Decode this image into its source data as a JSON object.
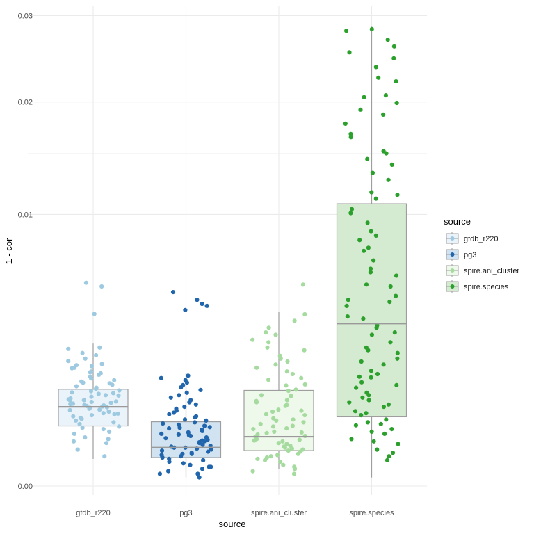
{
  "chart_data": {
    "type": "boxplot",
    "xlabel": "source",
    "ylabel": "1 - cor",
    "categories": [
      "gtdb_r220",
      "pg3",
      "spire.ani_cluster",
      "spire.species"
    ],
    "y_scale": "sqrt",
    "ylim": [
      0,
      0.0305
    ],
    "y_ticks": [
      0.0,
      0.01,
      0.02,
      0.03
    ],
    "y_tick_labels": [
      "0.00",
      "0.01",
      "0.02",
      "0.03"
    ],
    "grid": true,
    "legend": {
      "title": "source",
      "position": "right",
      "entries": [
        "gtdb_r220",
        "pg3",
        "spire.ani_cluster",
        "spire.species"
      ]
    },
    "series": [
      {
        "name": "gtdb_r220",
        "color": "#9ecae1",
        "box_fill": "#eaf3f9",
        "box": {
          "whisker_low": 0.0001,
          "q1": 0.00049,
          "median": 0.00085,
          "q3": 0.00127,
          "whisker_high": 0.00275
        },
        "points": [
          0.00012,
          0.00018,
          0.00025,
          0.00032,
          0.0004,
          0.00046,
          0.00052,
          0.00058,
          0.00063,
          0.00068,
          0.00072,
          0.00075,
          0.00078,
          0.00081,
          0.00084,
          0.00086,
          0.00088,
          0.00091,
          0.00094,
          0.00097,
          0.001,
          0.00104,
          0.00108,
          0.00112,
          0.00117,
          0.00122,
          0.00128,
          0.00135,
          0.00143,
          0.00152,
          0.00162,
          0.00175,
          0.00188,
          0.00202,
          0.0022,
          0.0024,
          0.0026,
          0.00402,
          0.0054,
          0.0056,
          0.00027,
          0.00055,
          0.00066,
          0.00079,
          0.00089,
          0.00099,
          0.00111,
          0.00124,
          0.00139,
          0.00157,
          0.00178,
          0.00198,
          0.00037,
          0.00048,
          0.00061,
          0.00071,
          0.00083,
          0.00092,
          0.00102,
          0.00115,
          0.00131,
          0.00148,
          0.00168,
          0.0019,
          0.00212,
          0.00232,
          0.00255,
          0.0003,
          0.00044,
          0.0007,
          0.00087,
          0.00096,
          0.00119,
          0.00145,
          0.00172,
          0.00195
        ]
      },
      {
        "name": "pg3",
        "color": "#2166ac",
        "box_fill": "#d1e3f1",
        "box": {
          "whisker_low": 1e-05,
          "q1": 0.00011,
          "median": 0.0002,
          "q3": 0.00056,
          "whisker_high": 0.00173
        },
        "points": [
          1e-05,
          2e-05,
          3e-05,
          5e-05,
          7e-05,
          9e-05,
          0.00011,
          0.00013,
          0.00015,
          0.00017,
          0.00019,
          0.00021,
          0.00023,
          0.00026,
          0.00029,
          0.00032,
          0.00035,
          0.00039,
          0.00043,
          0.00047,
          0.00051,
          0.00055,
          0.0006,
          0.00066,
          0.00073,
          0.00081,
          0.0009,
          0.001,
          0.00112,
          0.00125,
          0.00138,
          0.00152,
          0.00165,
          0.0042,
          0.0044,
          0.0045,
          0.0047,
          0.0051,
          4e-05,
          6e-05,
          8e-05,
          0.0001,
          0.00012,
          0.00014,
          0.00016,
          0.00018,
          0.0002,
          0.00022,
          0.00025,
          0.00028,
          0.00031,
          0.00034,
          0.00037,
          0.00041,
          0.00045,
          0.00049,
          0.00053,
          0.00058,
          0.00064,
          0.0007,
          0.00077,
          0.00085,
          0.00095,
          0.00106,
          0.00118,
          0.00132,
          0.00145,
          0.00158,
          2e-05,
          5e-05,
          9e-05,
          0.00014,
          0.0002,
          0.00027,
          0.00036,
          0.00046
        ]
      },
      {
        "name": "spire.ani_cluster",
        "color": "#a6dba0",
        "box_fill": "#eef8eb",
        "box": {
          "whisker_low": 4e-05,
          "q1": 0.00017,
          "median": 0.00033,
          "q3": 0.00124,
          "whisker_high": 0.0041
        },
        "points": [
          2e-05,
          4e-05,
          6e-05,
          8e-05,
          0.0001,
          0.00012,
          0.00014,
          0.00016,
          0.00018,
          0.0002,
          0.00022,
          0.00024,
          0.00027,
          0.0003,
          0.00033,
          0.00036,
          0.0004,
          0.00044,
          0.00049,
          0.00055,
          0.00062,
          0.0007,
          0.00079,
          0.00089,
          0.001,
          0.00112,
          0.00126,
          0.0014,
          0.00158,
          0.00178,
          0.002,
          0.0022,
          0.0025,
          0.0028,
          0.0031,
          0.0034,
          0.0037,
          0.004,
          0.0055,
          5e-05,
          9e-05,
          0.00013,
          0.00017,
          0.00021,
          0.00025,
          0.00029,
          0.00034,
          0.00039,
          0.00045,
          0.00052,
          0.0006,
          0.00068,
          0.00077,
          0.00087,
          0.00098,
          0.0011,
          0.00123,
          0.00137,
          0.00153,
          0.0017,
          0.0019,
          0.0021,
          0.0023,
          0.0026,
          0.0029,
          0.0032,
          3e-05,
          0.00011,
          0.00019,
          0.00028,
          0.00038,
          0.00048,
          0.00058,
          0.00075,
          0.00095
        ]
      },
      {
        "name": "spire.species",
        "color": "#2ca02c",
        "box_fill": "#d5ebd1",
        "box": {
          "whisker_low": 1e-05,
          "q1": 0.00065,
          "median": 0.00358,
          "q3": 0.0108,
          "whisker_high": 0.0286
        },
        "points": [
          0.00012,
          0.00018,
          0.00024,
          0.0003,
          0.00037,
          0.00044,
          0.00052,
          0.0006,
          0.00068,
          0.00076,
          0.00085,
          0.00095,
          0.00106,
          0.00118,
          0.00131,
          0.00146,
          0.00162,
          0.0018,
          0.002,
          0.0022,
          0.0025,
          0.0028,
          0.0031,
          0.0035,
          0.0039,
          0.0044,
          0.0049,
          0.0055,
          0.0062,
          0.0069,
          0.0077,
          0.0085,
          0.0094,
          0.0104,
          0.0115,
          0.0127,
          0.014,
          0.0152,
          0.0165,
          0.0178,
          0.0192,
          0.0207,
          0.0222,
          0.0238,
          0.0255,
          0.027,
          0.0283,
          0.00015,
          0.00027,
          0.0004,
          0.00055,
          0.00072,
          0.0009,
          0.00112,
          0.00138,
          0.0017,
          0.0021,
          0.0026,
          0.0032,
          0.0038,
          0.0046,
          0.0054,
          0.0064,
          0.0075,
          0.0088,
          0.0101,
          0.0117,
          0.0133,
          0.015,
          0.0168,
          0.0187,
          0.0205,
          0.0226,
          0.0248,
          9e-05,
          0.0005,
          0.001,
          0.0016,
          0.0024,
          0.0034,
          0.0047,
          0.006,
          0.0082,
          0.0112,
          0.0145,
          0.0199,
          0.0262,
          0.0281
        ]
      }
    ]
  }
}
